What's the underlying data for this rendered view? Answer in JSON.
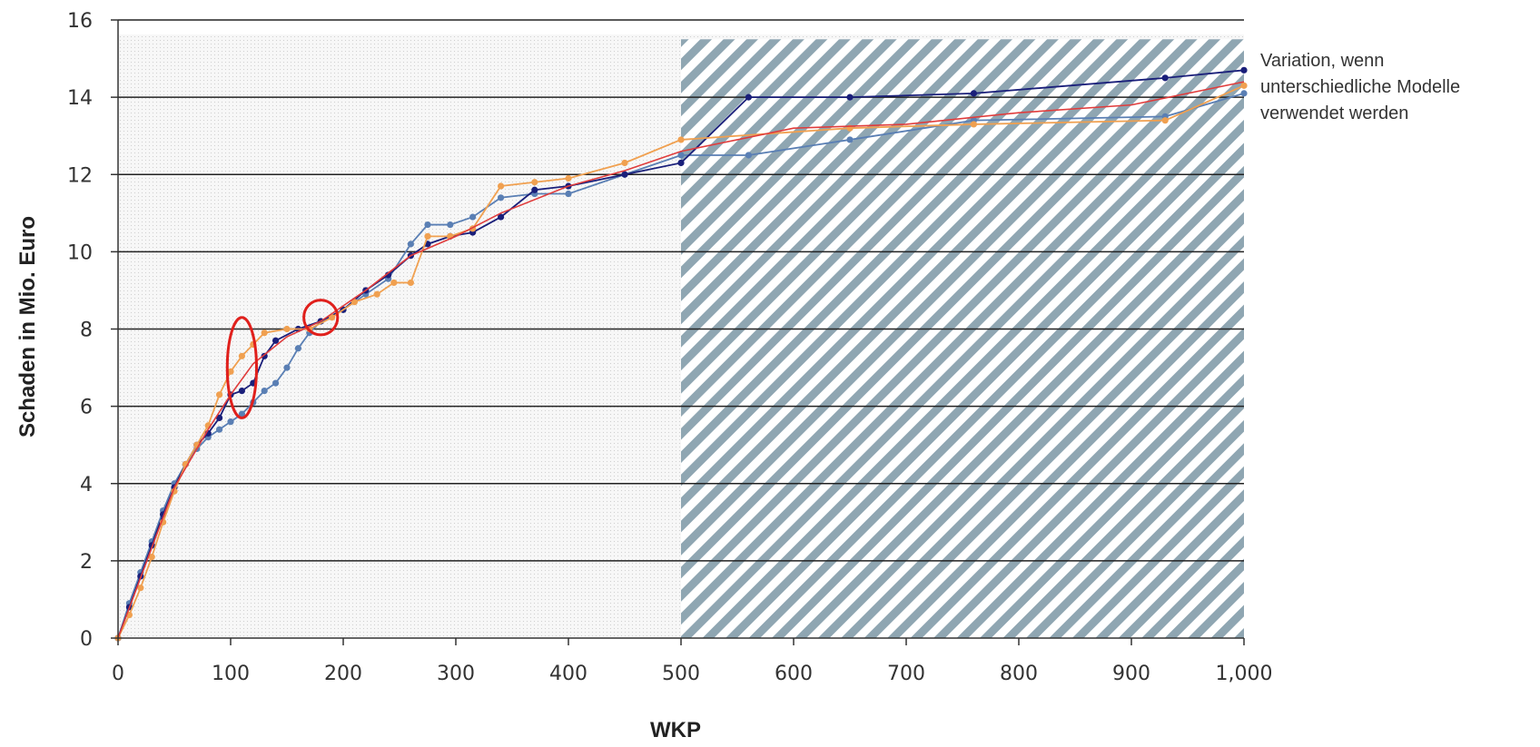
{
  "chart_data": {
    "type": "line",
    "title": "",
    "xlabel": "WKP",
    "ylabel": "Schaden in Mio. Euro",
    "xlim": [
      0,
      1000
    ],
    "ylim": [
      0,
      16
    ],
    "x_ticks": [
      "0",
      "100",
      "200",
      "300",
      "400",
      "500",
      "600",
      "700",
      "800",
      "900",
      "1,000"
    ],
    "y_ticks": [
      "0",
      "2",
      "4",
      "6",
      "8",
      "10",
      "12",
      "14",
      "16"
    ],
    "x_tick_values": [
      0,
      100,
      200,
      300,
      400,
      500,
      600,
      700,
      800,
      900,
      1000
    ],
    "y_tick_values": [
      0,
      2,
      4,
      6,
      8,
      10,
      12,
      14,
      16
    ],
    "grid": "horizontal",
    "shaded_region": {
      "x_from": 500,
      "x_to": 1000,
      "style": "diagonal hatch"
    },
    "annotation": [
      "Variation, wenn",
      "unterschiedliche Modelle",
      "verwendet werden"
    ],
    "highlights": [
      {
        "shape": "ellipse",
        "cx": 110,
        "cy": 7.0,
        "rx": 13,
        "ry": 1.3,
        "color": "#e0201c"
      },
      {
        "shape": "ellipse",
        "cx": 180,
        "cy": 8.3,
        "rx": 15,
        "ry": 0.45,
        "color": "#e0201c"
      }
    ],
    "series": [
      {
        "color": "#5a7fb4",
        "values": [
          [
            0,
            0
          ],
          [
            10,
            0.9
          ],
          [
            20,
            1.7
          ],
          [
            30,
            2.5
          ],
          [
            40,
            3.3
          ],
          [
            50,
            4.0
          ],
          [
            60,
            4.5
          ],
          [
            70,
            4.9
          ],
          [
            80,
            5.2
          ],
          [
            90,
            5.4
          ],
          [
            100,
            5.6
          ],
          [
            110,
            5.8
          ],
          [
            120,
            6.1
          ],
          [
            130,
            6.4
          ],
          [
            140,
            6.6
          ],
          [
            150,
            7.0
          ],
          [
            160,
            7.5
          ],
          [
            170,
            7.9
          ],
          [
            180,
            8.2
          ],
          [
            200,
            8.5
          ],
          [
            220,
            8.9
          ],
          [
            240,
            9.3
          ],
          [
            260,
            10.2
          ],
          [
            275,
            10.7
          ],
          [
            295,
            10.7
          ],
          [
            315,
            10.9
          ],
          [
            340,
            11.4
          ],
          [
            370,
            11.5
          ],
          [
            400,
            11.5
          ],
          [
            450,
            12.0
          ],
          [
            500,
            12.5
          ],
          [
            560,
            12.5
          ],
          [
            650,
            12.9
          ],
          [
            760,
            13.4
          ],
          [
            930,
            13.5
          ],
          [
            1000,
            14.1
          ]
        ]
      },
      {
        "color": "#1a1f7a",
        "values": [
          [
            0,
            0
          ],
          [
            10,
            0.8
          ],
          [
            20,
            1.6
          ],
          [
            30,
            2.4
          ],
          [
            40,
            3.2
          ],
          [
            50,
            3.9
          ],
          [
            60,
            4.5
          ],
          [
            70,
            5.0
          ],
          [
            80,
            5.3
          ],
          [
            90,
            5.7
          ],
          [
            100,
            6.3
          ],
          [
            110,
            6.4
          ],
          [
            120,
            6.6
          ],
          [
            130,
            7.3
          ],
          [
            140,
            7.7
          ],
          [
            160,
            8.0
          ],
          [
            180,
            8.2
          ],
          [
            200,
            8.5
          ],
          [
            220,
            9.0
          ],
          [
            240,
            9.4
          ],
          [
            260,
            9.9
          ],
          [
            275,
            10.2
          ],
          [
            295,
            10.4
          ],
          [
            315,
            10.5
          ],
          [
            340,
            10.9
          ],
          [
            370,
            11.6
          ],
          [
            400,
            11.7
          ],
          [
            450,
            12.0
          ],
          [
            500,
            12.3
          ],
          [
            560,
            14.0
          ],
          [
            650,
            14.0
          ],
          [
            760,
            14.1
          ],
          [
            930,
            14.5
          ],
          [
            1000,
            14.7
          ]
        ]
      },
      {
        "color": "#f0a050",
        "values": [
          [
            0,
            0
          ],
          [
            10,
            0.6
          ],
          [
            20,
            1.3
          ],
          [
            30,
            2.1
          ],
          [
            40,
            3.0
          ],
          [
            50,
            3.8
          ],
          [
            60,
            4.5
          ],
          [
            70,
            5.0
          ],
          [
            80,
            5.5
          ],
          [
            90,
            6.3
          ],
          [
            100,
            6.9
          ],
          [
            110,
            7.3
          ],
          [
            120,
            7.6
          ],
          [
            130,
            7.9
          ],
          [
            150,
            8.0
          ],
          [
            170,
            8.0
          ],
          [
            190,
            8.3
          ],
          [
            210,
            8.7
          ],
          [
            230,
            8.9
          ],
          [
            245,
            9.2
          ],
          [
            260,
            9.2
          ],
          [
            275,
            10.4
          ],
          [
            295,
            10.4
          ],
          [
            315,
            10.6
          ],
          [
            340,
            11.7
          ],
          [
            370,
            11.8
          ],
          [
            400,
            11.9
          ],
          [
            450,
            12.3
          ],
          [
            500,
            12.9
          ],
          [
            650,
            13.2
          ],
          [
            760,
            13.3
          ],
          [
            930,
            13.4
          ],
          [
            1000,
            14.3
          ]
        ]
      },
      {
        "color": "#e03c3c",
        "values": [
          [
            0,
            0
          ],
          [
            50,
            3.9
          ],
          [
            80,
            5.4
          ],
          [
            100,
            6.3
          ],
          [
            120,
            7.1
          ],
          [
            150,
            7.8
          ],
          [
            180,
            8.2
          ],
          [
            220,
            9.0
          ],
          [
            260,
            9.9
          ],
          [
            300,
            10.4
          ],
          [
            340,
            11.0
          ],
          [
            400,
            11.7
          ],
          [
            450,
            12.1
          ],
          [
            500,
            12.6
          ],
          [
            600,
            13.2
          ],
          [
            700,
            13.3
          ],
          [
            800,
            13.6
          ],
          [
            900,
            13.8
          ],
          [
            1000,
            14.4
          ]
        ]
      }
    ]
  }
}
